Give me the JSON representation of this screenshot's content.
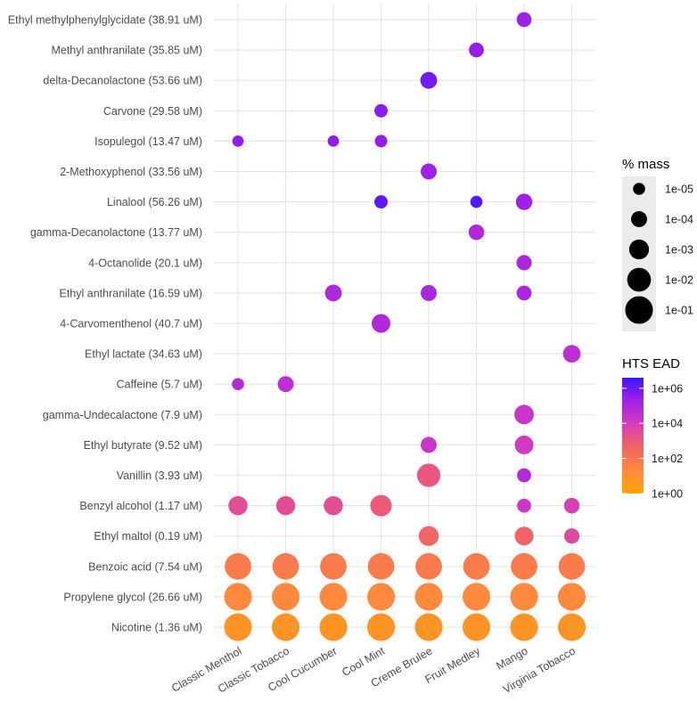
{
  "chart_data": {
    "type": "scatter",
    "subtype": "bubble",
    "x_categories": [
      "Classic Menthol",
      "Classic Tobacco",
      "Cool Cucumber",
      "Cool Mint",
      "Creme Brulee",
      "Fruit Medley",
      "Mango",
      "Virginia Tobacco"
    ],
    "y_categories": [
      "Ethyl methylphenylglycidate (38.91 uM)",
      "Methyl anthranilate (35.85 uM)",
      "delta-Decanolactone (53.66 uM)",
      "Carvone (29.58 uM)",
      "Isopulegol (13.47 uM)",
      "2-Methoxyphenol (33.56 uM)",
      "Linalool (56.26 uM)",
      "gamma-Decanolactone (13.77 uM)",
      "4-Octanolide (20.1 uM)",
      "Ethyl anthranilate (16.59 uM)",
      "4-Carvomenthenol (40.7 uM)",
      "Ethyl lactate (34.63 uM)",
      "Caffeine (5.7 uM)",
      "gamma-Undecalactone (7.9 uM)",
      "Ethyl butyrate (9.52 uM)",
      "Vanillin (3.93 uM)",
      "Benzyl alcohol (1.17 uM)",
      "Ethyl maltol (0.19 uM)",
      "Benzoic acid (7.54 uM)",
      "Propylene glycol (26.66 uM)",
      "Nicotine (1.36 uM)"
    ],
    "points": [
      {
        "y": "Ethyl methylphenylglycidate (38.91 uM)",
        "x": "Mango",
        "log10_mass": -4.3,
        "log10_ead": 5.4
      },
      {
        "y": "Methyl anthranilate (35.85 uM)",
        "x": "Fruit Medley",
        "log10_mass": -4.3,
        "log10_ead": 5.5
      },
      {
        "y": "delta-Decanolactone (53.66 uM)",
        "x": "Creme Brulee",
        "log10_mass": -3.8,
        "log10_ead": 5.9
      },
      {
        "y": "Carvone (29.58 uM)",
        "x": "Cool Mint",
        "log10_mass": -4.7,
        "log10_ead": 5.6
      },
      {
        "y": "Isopulegol (13.47 uM)",
        "x": "Classic Menthol",
        "log10_mass": -5.2,
        "log10_ead": 5.5
      },
      {
        "y": "Isopulegol (13.47 uM)",
        "x": "Cool Cucumber",
        "log10_mass": -5.2,
        "log10_ead": 5.5
      },
      {
        "y": "Isopulegol (13.47 uM)",
        "x": "Cool Mint",
        "log10_mass": -4.9,
        "log10_ead": 5.5
      },
      {
        "y": "2-Methoxyphenol (33.56 uM)",
        "x": "Creme Brulee",
        "log10_mass": -4.0,
        "log10_ead": 5.3
      },
      {
        "y": "Linalool (56.26 uM)",
        "x": "Cool Mint",
        "log10_mass": -4.7,
        "log10_ead": 6.2
      },
      {
        "y": "Linalool (56.26 uM)",
        "x": "Fruit Medley",
        "log10_mass": -5.0,
        "log10_ead": 6.3
      },
      {
        "y": "Linalool (56.26 uM)",
        "x": "Mango",
        "log10_mass": -3.9,
        "log10_ead": 5.3
      },
      {
        "y": "gamma-Decanolactone (13.77 uM)",
        "x": "Fruit Medley",
        "log10_mass": -4.1,
        "log10_ead": 4.9
      },
      {
        "y": "4-Octanolide (20.1 uM)",
        "x": "Mango",
        "log10_mass": -4.2,
        "log10_ead": 5.0
      },
      {
        "y": "Ethyl anthranilate (16.59 uM)",
        "x": "Cool Cucumber",
        "log10_mass": -3.8,
        "log10_ead": 4.9
      },
      {
        "y": "Ethyl anthranilate (16.59 uM)",
        "x": "Creme Brulee",
        "log10_mass": -4.0,
        "log10_ead": 5.0
      },
      {
        "y": "Ethyl anthranilate (16.59 uM)",
        "x": "Mango",
        "log10_mass": -4.3,
        "log10_ead": 5.0
      },
      {
        "y": "4-Carvomenthenol (40.7 uM)",
        "x": "Cool Mint",
        "log10_mass": -3.3,
        "log10_ead": 4.9
      },
      {
        "y": "Ethyl lactate (34.63 uM)",
        "x": "Virginia Tobacco",
        "log10_mass": -3.6,
        "log10_ead": 4.6
      },
      {
        "y": "Caffeine (5.7 uM)",
        "x": "Classic Menthol",
        "log10_mass": -5.0,
        "log10_ead": 4.8
      },
      {
        "y": "Caffeine (5.7 uM)",
        "x": "Classic Tobacco",
        "log10_mass": -4.0,
        "log10_ead": 4.6
      },
      {
        "y": "gamma-Undecalactone (7.9 uM)",
        "x": "Mango",
        "log10_mass": -3.1,
        "log10_ead": 4.3
      },
      {
        "y": "Ethyl butyrate (9.52 uM)",
        "x": "Creme Brulee",
        "log10_mass": -4.0,
        "log10_ead": 4.3
      },
      {
        "y": "Ethyl butyrate (9.52 uM)",
        "x": "Mango",
        "log10_mass": -3.3,
        "log10_ead": 4.1
      },
      {
        "y": "Vanillin (3.93 uM)",
        "x": "Creme Brulee",
        "log10_mass": -2.1,
        "log10_ead": 3.1
      },
      {
        "y": "Vanillin (3.93 uM)",
        "x": "Mango",
        "log10_mass": -4.5,
        "log10_ead": 4.8
      },
      {
        "y": "Benzyl alcohol (1.17 uM)",
        "x": "Classic Menthol",
        "log10_mass": -3.2,
        "log10_ead": 3.4
      },
      {
        "y": "Benzyl alcohol (1.17 uM)",
        "x": "Classic Tobacco",
        "log10_mass": -3.2,
        "log10_ead": 3.4
      },
      {
        "y": "Benzyl alcohol (1.17 uM)",
        "x": "Cool Cucumber",
        "log10_mass": -3.2,
        "log10_ead": 3.4
      },
      {
        "y": "Benzyl alcohol (1.17 uM)",
        "x": "Cool Mint",
        "log10_mass": -2.6,
        "log10_ead": 3.0
      },
      {
        "y": "Benzyl alcohol (1.17 uM)",
        "x": "Mango",
        "log10_mass": -4.5,
        "log10_ead": 4.2
      },
      {
        "y": "Benzyl alcohol (1.17 uM)",
        "x": "Virginia Tobacco",
        "log10_mass": -4.1,
        "log10_ead": 3.9
      },
      {
        "y": "Ethyl maltol (0.19 uM)",
        "x": "Creme Brulee",
        "log10_mass": -3.0,
        "log10_ead": 2.6
      },
      {
        "y": "Ethyl maltol (0.19 uM)",
        "x": "Mango",
        "log10_mass": -3.3,
        "log10_ead": 2.7
      },
      {
        "y": "Ethyl maltol (0.19 uM)",
        "x": "Virginia Tobacco",
        "log10_mass": -4.2,
        "log10_ead": 3.6
      },
      {
        "y": "Benzoic acid (7.54 uM)",
        "x": "Classic Menthol",
        "log10_mass": -1.3,
        "log10_ead": 1.8
      },
      {
        "y": "Benzoic acid (7.54 uM)",
        "x": "Classic Tobacco",
        "log10_mass": -1.3,
        "log10_ead": 1.8
      },
      {
        "y": "Benzoic acid (7.54 uM)",
        "x": "Cool Cucumber",
        "log10_mass": -1.3,
        "log10_ead": 1.8
      },
      {
        "y": "Benzoic acid (7.54 uM)",
        "x": "Cool Mint",
        "log10_mass": -1.3,
        "log10_ead": 1.8
      },
      {
        "y": "Benzoic acid (7.54 uM)",
        "x": "Creme Brulee",
        "log10_mass": -1.3,
        "log10_ead": 1.8
      },
      {
        "y": "Benzoic acid (7.54 uM)",
        "x": "Fruit Medley",
        "log10_mass": -1.3,
        "log10_ead": 1.8
      },
      {
        "y": "Benzoic acid (7.54 uM)",
        "x": "Mango",
        "log10_mass": -1.3,
        "log10_ead": 1.8
      },
      {
        "y": "Benzoic acid (7.54 uM)",
        "x": "Virginia Tobacco",
        "log10_mass": -1.3,
        "log10_ead": 1.8
      },
      {
        "y": "Propylene glycol (26.66 uM)",
        "x": "Classic Menthol",
        "log10_mass": -1.0,
        "log10_ead": 1.3
      },
      {
        "y": "Propylene glycol (26.66 uM)",
        "x": "Classic Tobacco",
        "log10_mass": -1.0,
        "log10_ead": 1.3
      },
      {
        "y": "Propylene glycol (26.66 uM)",
        "x": "Cool Cucumber",
        "log10_mass": -1.0,
        "log10_ead": 1.3
      },
      {
        "y": "Propylene glycol (26.66 uM)",
        "x": "Cool Mint",
        "log10_mass": -1.0,
        "log10_ead": 1.3
      },
      {
        "y": "Propylene glycol (26.66 uM)",
        "x": "Creme Brulee",
        "log10_mass": -1.0,
        "log10_ead": 1.3
      },
      {
        "y": "Propylene glycol (26.66 uM)",
        "x": "Fruit Medley",
        "log10_mass": -1.0,
        "log10_ead": 1.3
      },
      {
        "y": "Propylene glycol (26.66 uM)",
        "x": "Mango",
        "log10_mass": -1.0,
        "log10_ead": 1.3
      },
      {
        "y": "Propylene glycol (26.66 uM)",
        "x": "Virginia Tobacco",
        "log10_mass": -1.0,
        "log10_ead": 1.3
      },
      {
        "y": "Nicotine (1.36 uM)",
        "x": "Classic Menthol",
        "log10_mass": -1.0,
        "log10_ead": 0.8
      },
      {
        "y": "Nicotine (1.36 uM)",
        "x": "Classic Tobacco",
        "log10_mass": -1.0,
        "log10_ead": 0.8
      },
      {
        "y": "Nicotine (1.36 uM)",
        "x": "Cool Cucumber",
        "log10_mass": -1.0,
        "log10_ead": 0.8
      },
      {
        "y": "Nicotine (1.36 uM)",
        "x": "Cool Mint",
        "log10_mass": -1.0,
        "log10_ead": 0.8
      },
      {
        "y": "Nicotine (1.36 uM)",
        "x": "Creme Brulee",
        "log10_mass": -1.0,
        "log10_ead": 0.8
      },
      {
        "y": "Nicotine (1.36 uM)",
        "x": "Fruit Medley",
        "log10_mass": -1.0,
        "log10_ead": 0.8
      },
      {
        "y": "Nicotine (1.36 uM)",
        "x": "Mango",
        "log10_mass": -1.0,
        "log10_ead": 0.8
      },
      {
        "y": "Nicotine (1.36 uM)",
        "x": "Virginia Tobacco",
        "log10_mass": -1.0,
        "log10_ead": 0.8
      }
    ],
    "size_legend": {
      "title": "% mass",
      "labels": [
        "1e-05",
        "1e-04",
        "1e-03",
        "1e-02",
        "1e-01"
      ],
      "log10_values": [
        -5,
        -4,
        -3,
        -2,
        -1
      ]
    },
    "color_legend": {
      "title": "HTS EAD",
      "labels": [
        "1e+06",
        "1e+04",
        "1e+02",
        "1e+00"
      ],
      "log10_values": [
        6,
        4,
        2,
        0
      ],
      "log10_range": [
        0,
        6.6
      ],
      "colors": [
        "#FFA500",
        "#FF8A3D",
        "#F0606A",
        "#D03AC2",
        "#9B1FEA",
        "#3A16FF"
      ]
    },
    "grid": true,
    "xlabel": "",
    "ylabel": ""
  }
}
